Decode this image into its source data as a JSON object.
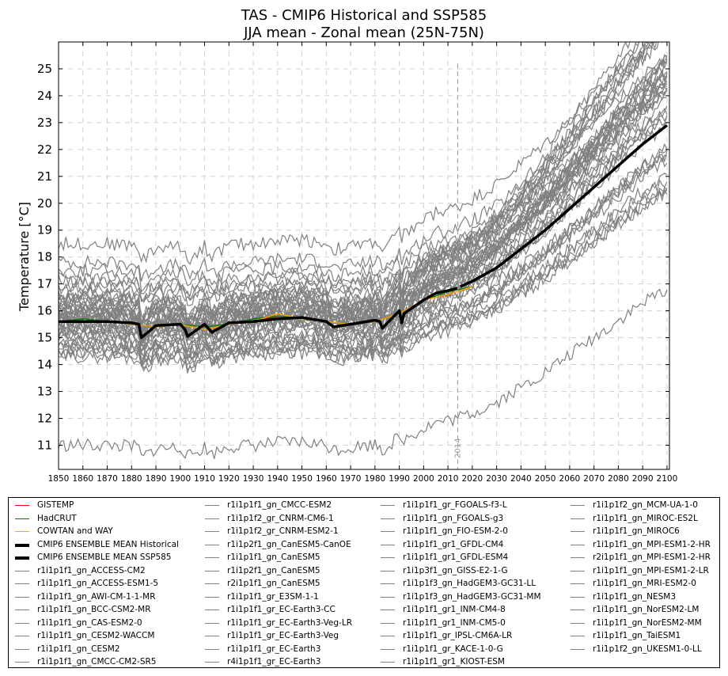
{
  "chart_data": {
    "type": "line",
    "title": "TAS - CMIP6 Historical and SSP585",
    "subtitle": "JJA mean - Zonal mean (25N-75N)",
    "xlabel": "",
    "ylabel": "Temperature [°C]",
    "xlim": [
      1850,
      2101
    ],
    "ylim": [
      10.1,
      26.0
    ],
    "xticks": [
      1850,
      1860,
      1870,
      1880,
      1890,
      1900,
      1910,
      1920,
      1930,
      1940,
      1950,
      1960,
      1970,
      1980,
      1990,
      2000,
      2010,
      2020,
      2030,
      2040,
      2050,
      2060,
      2070,
      2080,
      2090,
      2100
    ],
    "yticks": [
      11,
      12,
      13,
      14,
      15,
      16,
      17,
      18,
      19,
      20,
      21,
      22,
      23,
      24,
      25
    ],
    "grid": true,
    "legend_position": "below",
    "annotation": {
      "x": 2014,
      "label": "2014"
    },
    "colors": {
      "GISTEMP": "#ff0000",
      "HadCRUT": "#008000",
      "COWTAN and WAY": "#ffa500",
      "ensemble": "#000000",
      "models": "#808080",
      "annotation": "#999999"
    },
    "observations": [
      {
        "name": "GISTEMP",
        "color": "#ff0000",
        "x": [
          1880,
          1890,
          1900,
          1910,
          1920,
          1930,
          1940,
          1950,
          1960,
          1970,
          1980,
          1990,
          2000,
          2010,
          2020
        ],
        "values": [
          15.5,
          15.4,
          15.5,
          15.3,
          15.5,
          15.6,
          15.8,
          15.7,
          15.6,
          15.5,
          15.6,
          15.9,
          16.4,
          16.6,
          16.9
        ]
      },
      {
        "name": "HadCRUT",
        "color": "#008000",
        "x": [
          1850,
          1860,
          1870,
          1880,
          1890,
          1900,
          1910,
          1920,
          1930,
          1940,
          1950,
          1960,
          1970,
          1980,
          1990,
          2000,
          2010,
          2020
        ],
        "values": [
          15.6,
          15.7,
          15.6,
          15.5,
          15.4,
          15.5,
          15.4,
          15.5,
          15.7,
          15.8,
          15.7,
          15.6,
          15.5,
          15.6,
          15.9,
          16.4,
          16.7,
          16.9
        ]
      },
      {
        "name": "COWTAN and WAY",
        "color": "#ffa500",
        "x": [
          1850,
          1860,
          1870,
          1880,
          1890,
          1900,
          1910,
          1920,
          1930,
          1940,
          1950,
          1960,
          1970,
          1980,
          1990,
          2000,
          2010,
          2020
        ],
        "values": [
          15.6,
          15.6,
          15.6,
          15.5,
          15.4,
          15.5,
          15.3,
          15.5,
          15.6,
          15.9,
          15.7,
          15.6,
          15.5,
          15.6,
          15.9,
          16.4,
          16.6,
          16.9
        ]
      }
    ],
    "ensemble": [
      {
        "name": "CMIP6 ENSEMBLE MEAN Historical",
        "color": "#000000",
        "x": [
          1850,
          1860,
          1870,
          1880,
          1883,
          1884,
          1890,
          1900,
          1902,
          1903,
          1910,
          1912,
          1913,
          1920,
          1930,
          1940,
          1950,
          1960,
          1963,
          1970,
          1980,
          1982,
          1983,
          1990,
          1991,
          1992,
          2000,
          2005,
          2010,
          2014
        ],
        "values": [
          15.6,
          15.6,
          15.6,
          15.55,
          15.5,
          15.0,
          15.45,
          15.5,
          15.3,
          15.05,
          15.5,
          15.3,
          15.2,
          15.55,
          15.6,
          15.7,
          15.75,
          15.6,
          15.4,
          15.5,
          15.65,
          15.6,
          15.35,
          16.0,
          15.55,
          15.9,
          16.4,
          16.65,
          16.75,
          16.85
        ]
      },
      {
        "name": "CMIP6 ENSEMBLE MEAN SSP585",
        "color": "#000000",
        "x": [
          2015,
          2020,
          2030,
          2040,
          2050,
          2060,
          2070,
          2080,
          2090,
          2100
        ],
        "values": [
          16.9,
          17.1,
          17.6,
          18.3,
          19.0,
          19.8,
          20.6,
          21.4,
          22.2,
          22.9
        ]
      }
    ],
    "model_envelope": {
      "x": [
        1850,
        1900,
        1950,
        1980,
        2014,
        2030,
        2050,
        2070,
        2090,
        2100
      ],
      "min": [
        10.6,
        10.7,
        11.0,
        11.1,
        12.8,
        13.3,
        14.0,
        14.8,
        15.4,
        15.8
      ],
      "max": [
        18.9,
        18.7,
        18.6,
        18.4,
        18.6,
        19.5,
        21.2,
        23.2,
        25.2,
        26.0
      ]
    },
    "model_series": [
      {
        "name": "r1i1p1f1_gn_ACCESS-CM2",
        "offset": 0.2,
        "warming": 1.3
      },
      {
        "name": "r1i1p1f1_gn_ACCESS-ESM1-5",
        "offset": -0.1,
        "warming": 1.1
      },
      {
        "name": "r1i1p1f1_gn_AWI-CM-1-1-MR",
        "offset": 0.0,
        "warming": 1.0
      },
      {
        "name": "r1i1p1f1_gn_BCC-CSM2-MR",
        "offset": -0.3,
        "warming": 0.9
      },
      {
        "name": "r1i1p1f1_gn_CAS-ESM2-0",
        "offset": 0.4,
        "warming": 1.2
      },
      {
        "name": "r1i1p1f1_gn_CESM2-WACCM",
        "offset": 0.1,
        "warming": 1.25
      },
      {
        "name": "r1i1p1f1_gn_CESM2",
        "offset": 0.3,
        "warming": 1.3
      },
      {
        "name": "r1i1p1f1_gn_CMCC-CM2-SR5",
        "offset": 0.6,
        "warming": 1.1
      },
      {
        "name": "r1i1p1f1_gn_CMCC-ESM2",
        "offset": 0.5,
        "warming": 1.15
      },
      {
        "name": "r1i1p1f2_gr_CNRM-CM6-1",
        "offset": -0.5,
        "warming": 1.2
      },
      {
        "name": "r1i1p1f2_gr_CNRM-ESM2-1",
        "offset": -0.4,
        "warming": 1.1
      },
      {
        "name": "r1i1p2f1_gn_CanESM5-CanOE",
        "offset": 0.9,
        "warming": 1.45
      },
      {
        "name": "r1i1p1f1_gn_CanESM5",
        "offset": 1.0,
        "warming": 1.45
      },
      {
        "name": "r1i1p2f1_gn_CanESM5",
        "offset": 0.8,
        "warming": 1.4
      },
      {
        "name": "r2i1p1f1_gn_CanESM5",
        "offset": 0.85,
        "warming": 1.4
      },
      {
        "name": "r1i1p1f1_gr_E3SM-1-1",
        "offset": -0.2,
        "warming": 1.2
      },
      {
        "name": "r1i1p1f1_gr_EC-Earth3-CC",
        "offset": 0.3,
        "warming": 1.3
      },
      {
        "name": "r1i1p1f1_gr_EC-Earth3-Veg-LR",
        "offset": -0.1,
        "warming": 1.2
      },
      {
        "name": "r1i1p1f1_gr_EC-Earth3-Veg",
        "offset": 0.2,
        "warming": 1.3
      },
      {
        "name": "r1i1p1f1_gr_EC-Earth3",
        "offset": 0.1,
        "warming": 1.3
      },
      {
        "name": "r4i1p1f1_gr_EC-Earth3",
        "offset": 0.0,
        "warming": 1.25
      },
      {
        "name": "r1i1p1f1_gr_FGOALS-f3-L",
        "offset": -0.9,
        "warming": 1.0
      },
      {
        "name": "r1i1p1f1_gn_FGOALS-g3",
        "offset": -1.1,
        "warming": 0.9
      },
      {
        "name": "r1i1p1f1_gn_FIO-ESM-2-0",
        "offset": 1.6,
        "warming": 1.05
      },
      {
        "name": "r1i1p1f1_gr1_GFDL-CM4",
        "offset": 2.2,
        "warming": 1.05
      },
      {
        "name": "r1i1p1f1_gr1_GFDL-ESM4",
        "offset": 1.9,
        "warming": 0.95
      },
      {
        "name": "r1i1p3f1_gn_GISS-E2-1-G",
        "offset": 1.3,
        "warming": 1.0
      },
      {
        "name": "r1i1p1f3_gn_HadGEM3-GC31-LL",
        "offset": 0.5,
        "warming": 1.4
      },
      {
        "name": "r1i1p1f3_gn_HadGEM3-GC31-MM",
        "offset": 0.6,
        "warming": 1.4
      },
      {
        "name": "r1i1p1f1_gr1_INM-CM4-8",
        "offset": -1.3,
        "warming": 0.85
      },
      {
        "name": "r1i1p1f1_gr1_INM-CM5-0",
        "offset": -1.2,
        "warming": 0.85
      },
      {
        "name": "r1i1p1f1_gr_IPSL-CM6A-LR",
        "offset": 0.7,
        "warming": 1.5
      },
      {
        "name": "r1i1p1f1_gr_KACE-1-0-G",
        "offset": 0.4,
        "warming": 1.45
      },
      {
        "name": "r1i1p1f1_gr1_KIOST-ESM",
        "offset": -4.6,
        "warming": 0.8
      },
      {
        "name": "r1i1p1f2_gn_MCM-UA-1-0",
        "offset": 2.9,
        "warming": 1.1
      },
      {
        "name": "r1i1p1f1_gn_MIROC-ES2L",
        "offset": 1.5,
        "warming": 1.0
      },
      {
        "name": "r1i1p1f1_gn_MIROC6",
        "offset": 1.2,
        "warming": 0.9
      },
      {
        "name": "r1i1p1f1_gn_MPI-ESM1-2-HR",
        "offset": -0.6,
        "warming": 0.9
      },
      {
        "name": "r2i1p1f1_gn_MPI-ESM1-2-HR",
        "offset": -0.7,
        "warming": 0.95
      },
      {
        "name": "r1i1p1f1_gn_MPI-ESM1-2-LR",
        "offset": -0.8,
        "warming": 1.0
      },
      {
        "name": "r1i1p1f1_gn_MRI-ESM2-0",
        "offset": -0.3,
        "warming": 1.1
      },
      {
        "name": "r1i1p1f1_gn_NESM3",
        "offset": 0.1,
        "warming": 1.25
      },
      {
        "name": "r1i1p1f1_gn_NorESM2-LM",
        "offset": -1.0,
        "warming": 0.8
      },
      {
        "name": "r1i1p1f1_gn_NorESM2-MM",
        "offset": -0.9,
        "warming": 0.85
      },
      {
        "name": "r1i1p1f1_gn_TaiESM1",
        "offset": 0.2,
        "warming": 1.2
      },
      {
        "name": "r1i1p1f2_gn_UKESM1-0-LL",
        "offset": 0.9,
        "warming": 1.55
      }
    ]
  },
  "legend": {
    "columns": [
      [
        {
          "label": "GISTEMP",
          "color": "#ff0000",
          "thick": false
        },
        {
          "label": "HadCRUT",
          "color": "#008000",
          "thick": false
        },
        {
          "label": "COWTAN and WAY",
          "color": "#ffa500",
          "thick": false
        },
        {
          "label": "CMIP6 ENSEMBLE MEAN Historical",
          "color": "#000000",
          "thick": true
        },
        {
          "label": "CMIP6 ENSEMBLE MEAN SSP585",
          "color": "#000000",
          "thick": true
        },
        {
          "label": "r1i1p1f1_gn_ACCESS-CM2",
          "color": "#808080",
          "thick": false
        },
        {
          "label": "r1i1p1f1_gn_ACCESS-ESM1-5",
          "color": "#808080",
          "thick": false
        },
        {
          "label": "r1i1p1f1_gn_AWI-CM-1-1-MR",
          "color": "#808080",
          "thick": false
        },
        {
          "label": "r1i1p1f1_gn_BCC-CSM2-MR",
          "color": "#808080",
          "thick": false
        },
        {
          "label": "r1i1p1f1_gn_CAS-ESM2-0",
          "color": "#808080",
          "thick": false
        },
        {
          "label": "r1i1p1f1_gn_CESM2-WACCM",
          "color": "#808080",
          "thick": false
        },
        {
          "label": "r1i1p1f1_gn_CESM2",
          "color": "#808080",
          "thick": false
        },
        {
          "label": "r1i1p1f1_gn_CMCC-CM2-SR5",
          "color": "#808080",
          "thick": false
        }
      ],
      [
        {
          "label": "r1i1p1f1_gn_CMCC-ESM2",
          "color": "#808080",
          "thick": false
        },
        {
          "label": "r1i1p1f2_gr_CNRM-CM6-1",
          "color": "#808080",
          "thick": false
        },
        {
          "label": "r1i1p1f2_gr_CNRM-ESM2-1",
          "color": "#808080",
          "thick": false
        },
        {
          "label": "r1i1p2f1_gn_CanESM5-CanOE",
          "color": "#808080",
          "thick": false
        },
        {
          "label": "r1i1p1f1_gn_CanESM5",
          "color": "#808080",
          "thick": false
        },
        {
          "label": "r1i1p2f1_gn_CanESM5",
          "color": "#808080",
          "thick": false
        },
        {
          "label": "r2i1p1f1_gn_CanESM5",
          "color": "#808080",
          "thick": false
        },
        {
          "label": "r1i1p1f1_gr_E3SM-1-1",
          "color": "#808080",
          "thick": false
        },
        {
          "label": "r1i1p1f1_gr_EC-Earth3-CC",
          "color": "#808080",
          "thick": false
        },
        {
          "label": "r1i1p1f1_gr_EC-Earth3-Veg-LR",
          "color": "#808080",
          "thick": false
        },
        {
          "label": "r1i1p1f1_gr_EC-Earth3-Veg",
          "color": "#808080",
          "thick": false
        },
        {
          "label": "r1i1p1f1_gr_EC-Earth3",
          "color": "#808080",
          "thick": false
        },
        {
          "label": "r4i1p1f1_gr_EC-Earth3",
          "color": "#808080",
          "thick": false
        }
      ],
      [
        {
          "label": "r1i1p1f1_gr_FGOALS-f3-L",
          "color": "#808080",
          "thick": false
        },
        {
          "label": "r1i1p1f1_gn_FGOALS-g3",
          "color": "#808080",
          "thick": false
        },
        {
          "label": "r1i1p1f1_gn_FIO-ESM-2-0",
          "color": "#808080",
          "thick": false
        },
        {
          "label": "r1i1p1f1_gr1_GFDL-CM4",
          "color": "#808080",
          "thick": false
        },
        {
          "label": "r1i1p1f1_gr1_GFDL-ESM4",
          "color": "#808080",
          "thick": false
        },
        {
          "label": "r1i1p3f1_gn_GISS-E2-1-G",
          "color": "#808080",
          "thick": false
        },
        {
          "label": "r1i1p1f3_gn_HadGEM3-GC31-LL",
          "color": "#808080",
          "thick": false
        },
        {
          "label": "r1i1p1f3_gn_HadGEM3-GC31-MM",
          "color": "#808080",
          "thick": false
        },
        {
          "label": "r1i1p1f1_gr1_INM-CM4-8",
          "color": "#808080",
          "thick": false
        },
        {
          "label": "r1i1p1f1_gr1_INM-CM5-0",
          "color": "#808080",
          "thick": false
        },
        {
          "label": "r1i1p1f1_gr_IPSL-CM6A-LR",
          "color": "#808080",
          "thick": false
        },
        {
          "label": "r1i1p1f1_gr_KACE-1-0-G",
          "color": "#808080",
          "thick": false
        },
        {
          "label": "r1i1p1f1_gr1_KIOST-ESM",
          "color": "#808080",
          "thick": false
        }
      ],
      [
        {
          "label": "r1i1p1f2_gn_MCM-UA-1-0",
          "color": "#808080",
          "thick": false
        },
        {
          "label": "r1i1p1f1_gn_MIROC-ES2L",
          "color": "#808080",
          "thick": false
        },
        {
          "label": "r1i1p1f1_gn_MIROC6",
          "color": "#808080",
          "thick": false
        },
        {
          "label": "r1i1p1f1_gn_MPI-ESM1-2-HR",
          "color": "#808080",
          "thick": false
        },
        {
          "label": "r2i1p1f1_gn_MPI-ESM1-2-HR",
          "color": "#808080",
          "thick": false
        },
        {
          "label": "r1i1p1f1_gn_MPI-ESM1-2-LR",
          "color": "#808080",
          "thick": false
        },
        {
          "label": "r1i1p1f1_gn_MRI-ESM2-0",
          "color": "#808080",
          "thick": false
        },
        {
          "label": "r1i1p1f1_gn_NESM3",
          "color": "#808080",
          "thick": false
        },
        {
          "label": "r1i1p1f1_gn_NorESM2-LM",
          "color": "#808080",
          "thick": false
        },
        {
          "label": "r1i1p1f1_gn_NorESM2-MM",
          "color": "#808080",
          "thick": false
        },
        {
          "label": "r1i1p1f1_gn_TaiESM1",
          "color": "#808080",
          "thick": false
        },
        {
          "label": "r1i1p1f2_gn_UKESM1-0-LL",
          "color": "#808080",
          "thick": false
        }
      ]
    ]
  }
}
